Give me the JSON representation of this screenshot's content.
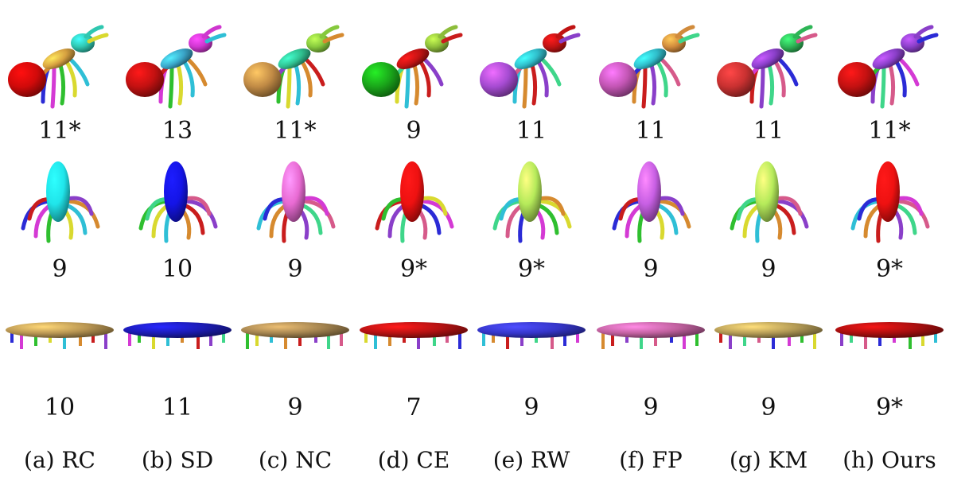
{
  "figure": {
    "captions": [
      "(a) RC",
      "(b) SD",
      "(c) NC",
      "(d) CE",
      "(e) RW",
      "(f) FP",
      "(g) KM",
      "(h) Ours"
    ],
    "rows": [
      {
        "shape": "ant",
        "segment_counts": [
          "11*",
          "13",
          "11*",
          "9",
          "11",
          "11",
          "11",
          "11*"
        ],
        "body_colors": [
          [
            "#d10a0a",
            "#d6a040",
            "#2fc7b0"
          ],
          [
            "#c31111",
            "#3aa5c8",
            "#cf36cf"
          ],
          [
            "#c08a45",
            "#2fbf8f",
            "#86c93d"
          ],
          [
            "#1aa51a",
            "#c01313",
            "#8dbd3a"
          ],
          [
            "#a54bd1",
            "#2fbcc9",
            "#c01313"
          ],
          [
            "#c255b3",
            "#2fbcc9",
            "#d18b3c"
          ],
          [
            "#c93131",
            "#8a3fc9",
            "#2eb556"
          ],
          [
            "#c31111",
            "#8a3fc9",
            "#8a3fc9"
          ]
        ]
      },
      {
        "shape": "octopus",
        "segment_counts": [
          "9",
          "10",
          "9",
          "9*",
          "9*",
          "9",
          "9",
          "9*"
        ],
        "body_colors": [
          "#20e5ea",
          "#1414e6",
          "#e86ad2",
          "#ee1111",
          "#b5ea5a",
          "#c75fe3",
          "#b5ea5a",
          "#ee1111"
        ]
      },
      {
        "shape": "table",
        "segment_counts": [
          "10",
          "11",
          "9",
          "7",
          "9",
          "9",
          "9",
          "9*"
        ],
        "body_colors": [
          "#b89552",
          "#1b1bb0",
          "#a3834f",
          "#b31212",
          "#3535c8",
          "#c0609e",
          "#b39a55",
          "#a80f0f"
        ]
      }
    ],
    "leg_palette": [
      "#2b2bd6",
      "#d43ad4",
      "#2fbf2f",
      "#d9d92f",
      "#2fbfd6",
      "#d68a2f",
      "#c91d1d",
      "#8a3fc9",
      "#3fd68a",
      "#d65a8a"
    ]
  }
}
